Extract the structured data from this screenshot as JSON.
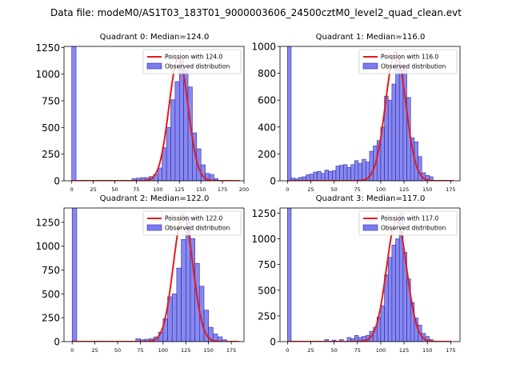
{
  "figure_title": "Data file: modeM0/AS1T03_183T01_9000003606_24500cztM0_level2_quad_clean.evt",
  "legend": {
    "observed_label": "Observed distribution"
  },
  "colors": {
    "bar_fill": "#7b7bf0",
    "bar_edge": "#2a2aa0",
    "poisson_line": "#e41a1c"
  },
  "chart_data": [
    {
      "type": "bar",
      "title": "Quadrant 0: Median=124.0",
      "poisson_label": "Poission with 124.0",
      "median": 124.0,
      "bin_width": 5,
      "xlim": [
        -9,
        200
      ],
      "ylim": [
        0,
        1260
      ],
      "xticks": [
        0,
        25,
        50,
        75,
        100,
        125,
        150,
        175,
        200
      ],
      "yticks": [
        0,
        250,
        500,
        750,
        1000,
        1250
      ],
      "bins": [
        0,
        70,
        75,
        80,
        85,
        90,
        95,
        100,
        105,
        110,
        115,
        120,
        125,
        130,
        135,
        140,
        145,
        150,
        155,
        160,
        165
      ],
      "values": [
        1260,
        20,
        25,
        30,
        30,
        40,
        60,
        120,
        310,
        500,
        760,
        930,
        1130,
        1040,
        880,
        450,
        300,
        150,
        70,
        60,
        20
      ],
      "poisson_peak": 1150,
      "poisson_sigma": 11.1,
      "poisson_range": [
        0,
        195
      ]
    },
    {
      "type": "bar",
      "title": "Quadrant 1: Median=116.0",
      "poisson_label": "Poission with 116.0",
      "median": 116.0,
      "bin_width": 4,
      "xlim": [
        -8,
        185
      ],
      "ylim": [
        0,
        1000
      ],
      "xticks": [
        0,
        25,
        50,
        75,
        100,
        125,
        150,
        175
      ],
      "yticks": [
        0,
        200,
        400,
        600,
        800,
        1000
      ],
      "bins": [
        0,
        4,
        8,
        12,
        16,
        20,
        24,
        28,
        32,
        36,
        40,
        44,
        48,
        52,
        56,
        60,
        64,
        68,
        72,
        76,
        80,
        84,
        88,
        92,
        96,
        100,
        104,
        108,
        112,
        116,
        120,
        124,
        128,
        132,
        136,
        140,
        144,
        148,
        152
      ],
      "values": [
        1000,
        20,
        15,
        25,
        30,
        45,
        50,
        65,
        70,
        55,
        80,
        70,
        75,
        110,
        115,
        120,
        100,
        120,
        150,
        130,
        160,
        140,
        220,
        260,
        300,
        400,
        630,
        600,
        720,
        900,
        860,
        840,
        620,
        320,
        290,
        180,
        60,
        40,
        30
      ],
      "poisson_peak": 960,
      "poisson_sigma": 10.8,
      "poisson_range": [
        0,
        178
      ]
    },
    {
      "type": "bar",
      "title": "Quadrant 2: Median=122.0",
      "poisson_label": "Poission with 122.0",
      "median": 122.0,
      "bin_width": 5,
      "xlim": [
        -9,
        189
      ],
      "ylim": [
        0,
        1400
      ],
      "xticks": [
        0,
        25,
        50,
        75,
        100,
        125,
        150,
        175
      ],
      "yticks": [
        0,
        250,
        500,
        750,
        1000,
        1250
      ],
      "bins": [
        0,
        70,
        75,
        80,
        85,
        90,
        95,
        100,
        105,
        110,
        115,
        120,
        125,
        130,
        135,
        140,
        145,
        150,
        155,
        160,
        165
      ],
      "values": [
        1400,
        30,
        20,
        25,
        30,
        50,
        100,
        240,
        470,
        500,
        770,
        1070,
        1310,
        1080,
        820,
        580,
        330,
        150,
        80,
        50,
        20
      ],
      "poisson_peak": 1330,
      "poisson_sigma": 10.7,
      "poisson_range": [
        0,
        184
      ]
    },
    {
      "type": "bar",
      "title": "Quadrant 3: Median=117.0",
      "poisson_label": "Poission with 117.0",
      "median": 117.0,
      "bin_width": 4,
      "xlim": [
        -8,
        185
      ],
      "ylim": [
        0,
        1300
      ],
      "xticks": [
        0,
        25,
        50,
        75,
        100,
        125,
        150,
        175
      ],
      "yticks": [
        0,
        250,
        500,
        750,
        1000,
        1250
      ],
      "bins": [
        0,
        40,
        48,
        56,
        64,
        68,
        72,
        76,
        80,
        84,
        88,
        92,
        96,
        100,
        104,
        108,
        112,
        116,
        120,
        124,
        128,
        132,
        136,
        140,
        144,
        148,
        152
      ],
      "values": [
        1300,
        20,
        15,
        20,
        40,
        30,
        60,
        40,
        50,
        60,
        100,
        140,
        240,
        350,
        650,
        820,
        940,
        1000,
        1250,
        870,
        610,
        380,
        230,
        160,
        80,
        50,
        20
      ],
      "poisson_peak": 1180,
      "poisson_sigma": 10.8,
      "poisson_range": [
        0,
        176
      ]
    }
  ]
}
